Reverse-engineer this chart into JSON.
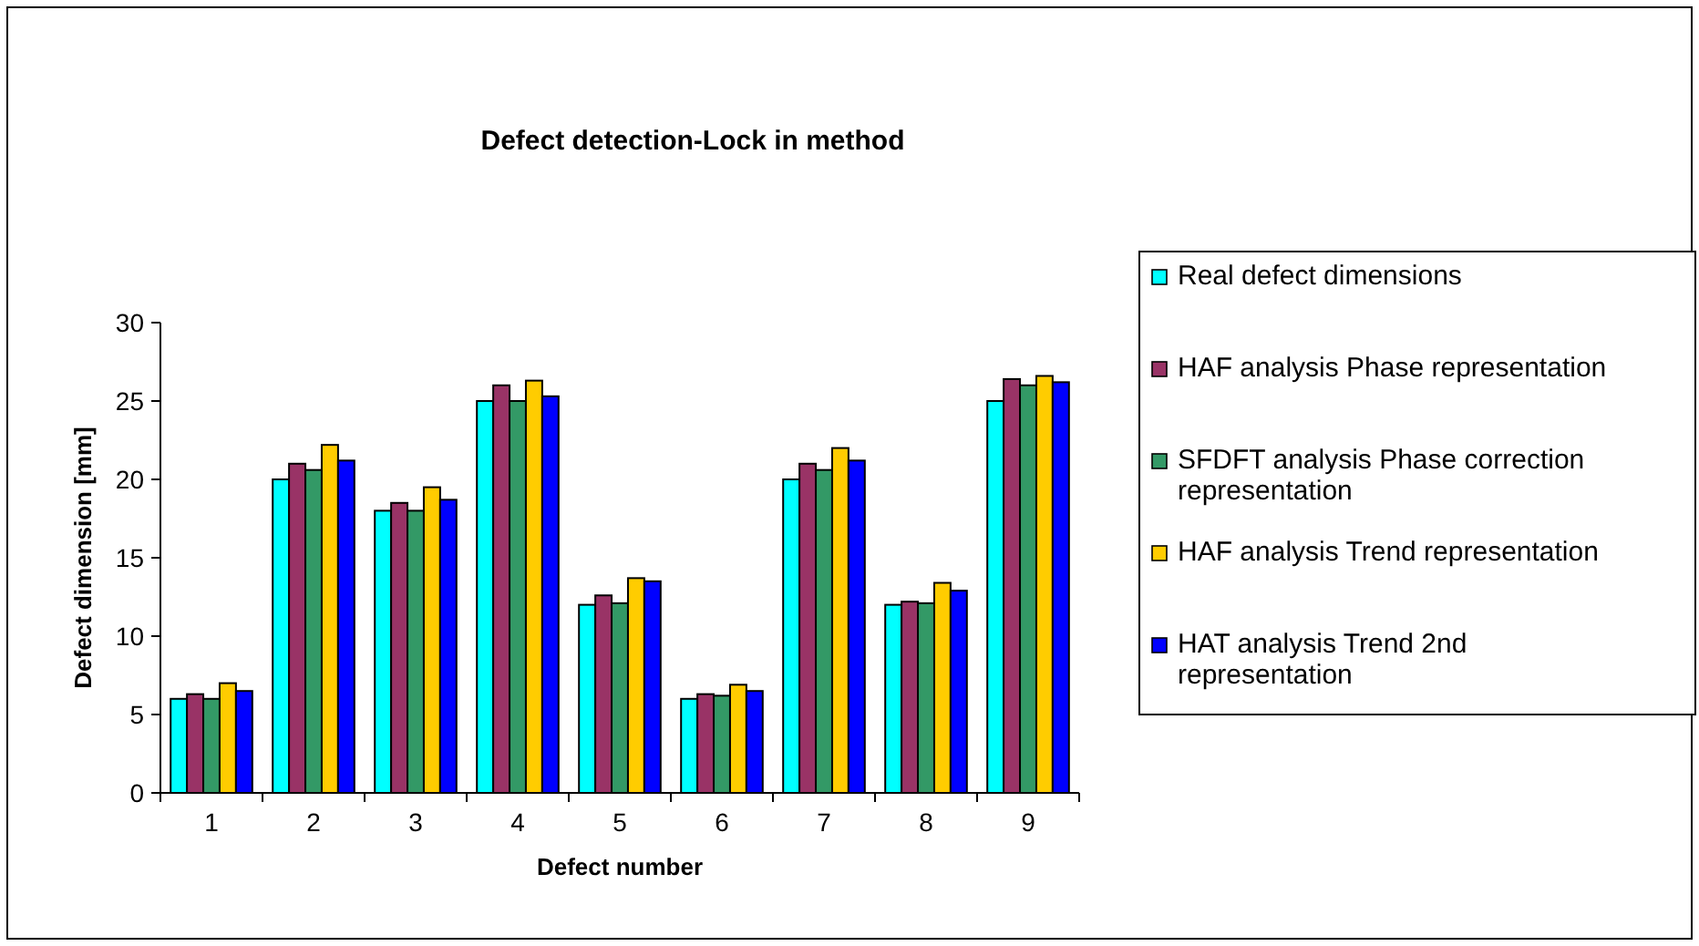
{
  "chart_data": {
    "type": "bar",
    "title": "Defect detection-Lock in method",
    "xlabel": "Defect number",
    "ylabel": "Defect dimension [mm]",
    "categories": [
      "1",
      "2",
      "3",
      "4",
      "5",
      "6",
      "7",
      "8",
      "9"
    ],
    "series": [
      {
        "name": "Real defect dimensions",
        "color": "#00ffff",
        "values": [
          6,
          20,
          18,
          25,
          12,
          6,
          20,
          12,
          25
        ]
      },
      {
        "name": "HAF analysis Phase representation",
        "color": "#993366",
        "values": [
          6.3,
          21,
          18.5,
          26,
          12.6,
          6.3,
          21,
          12.2,
          26.4
        ]
      },
      {
        "name": "SFDFT analysis Phase correction representation",
        "color": "#339966",
        "values": [
          6,
          20.6,
          18,
          25,
          12.1,
          6.2,
          20.6,
          12.1,
          26
        ]
      },
      {
        "name": "HAF analysis Trend representation",
        "color": "#ffcc00",
        "values": [
          7,
          22.2,
          19.5,
          26.3,
          13.7,
          6.9,
          22,
          13.4,
          26.6
        ]
      },
      {
        "name": "HAT analysis Trend 2nd representation",
        "color": "#0000ff",
        "values": [
          6.5,
          21.2,
          18.7,
          25.3,
          13.5,
          6.5,
          21.2,
          12.9,
          26.2
        ]
      }
    ],
    "ylim": [
      0,
      30
    ],
    "yticks": [
      0,
      5,
      10,
      15,
      20,
      25,
      30
    ],
    "grid": false,
    "legend": "right"
  }
}
